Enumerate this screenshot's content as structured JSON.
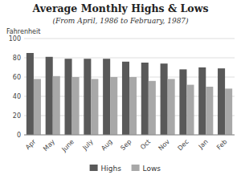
{
  "chart_data": {
    "type": "bar",
    "title": "Average Monthly Highs & Lows",
    "subtitle": "(From April, 1986 to February, 1987)",
    "y_label": "Fahrenheit",
    "categories": [
      "Apr",
      "May",
      "June",
      "July",
      "Aug",
      "Sep",
      "Oct",
      "Nov",
      "Dec",
      "Jan",
      "Feb"
    ],
    "series": [
      {
        "name": "Highs",
        "color": "#595959",
        "values": [
          85,
          81,
          79,
          79,
          79,
          76,
          75,
          74,
          68,
          70,
          69
        ]
      },
      {
        "name": "Lows",
        "color": "#a8a8a8",
        "values": [
          58,
          61,
          60,
          58,
          60,
          60,
          56,
          58,
          52,
          50,
          48
        ]
      }
    ],
    "ylim": [
      0,
      100
    ],
    "yticks": [
      0,
      20,
      40,
      60,
      80,
      100
    ],
    "grid": true,
    "legend": "bottom"
  }
}
